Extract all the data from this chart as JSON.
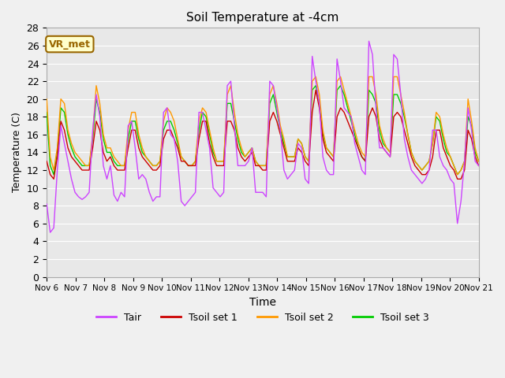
{
  "title": "Soil Temperature at -4cm",
  "xlabel": "Time",
  "ylabel": "Temperature (C)",
  "ylim": [
    0,
    28
  ],
  "annotation_text": "VR_met",
  "annotation_bg": "#ffffcc",
  "annotation_border": "#996600",
  "legend_entries": [
    "Tair",
    "Tsoil set 1",
    "Tsoil set 2",
    "Tsoil set 3"
  ],
  "line_colors": [
    "#cc44ff",
    "#cc0000",
    "#ff9900",
    "#00cc00"
  ],
  "tick_labels": [
    "Nov 6",
    "Nov 7",
    "Nov 8",
    "Nov 9",
    "Nov 10",
    "Nov 11",
    "Nov 12",
    "Nov 13",
    "Nov 14",
    "Nov 15",
    "Nov 16",
    "Nov 17",
    "Nov 18",
    "Nov 19",
    "Nov 20",
    "Nov 21"
  ],
  "tair": [
    8.2,
    5.0,
    5.5,
    12.0,
    17.0,
    15.0,
    13.0,
    11.0,
    9.5,
    9.0,
    8.7,
    9.0,
    9.5,
    16.5,
    20.5,
    18.0,
    12.5,
    11.0,
    12.5,
    9.2,
    8.5,
    9.5,
    9.0,
    17.0,
    17.5,
    14.5,
    11.0,
    11.5,
    11.0,
    9.5,
    8.5,
    9.0,
    9.0,
    18.5,
    19.0,
    16.0,
    15.5,
    13.0,
    8.5,
    8.0,
    8.5,
    9.0,
    9.5,
    18.5,
    18.5,
    16.5,
    14.5,
    10.0,
    9.5,
    9.0,
    9.5,
    21.5,
    22.0,
    17.0,
    12.5,
    12.5,
    12.5,
    13.0,
    14.5,
    9.5,
    9.5,
    9.5,
    9.0,
    22.0,
    21.5,
    19.0,
    16.5,
    12.0,
    11.0,
    11.5,
    12.0,
    15.0,
    14.5,
    11.0,
    10.5,
    24.8,
    22.0,
    19.5,
    13.5,
    12.0,
    11.5,
    11.5,
    24.5,
    22.0,
    19.0,
    18.5,
    18.0,
    15.0,
    13.5,
    12.0,
    11.5,
    26.5,
    25.0,
    19.0,
    14.5,
    14.5,
    14.0,
    13.5,
    25.0,
    24.5,
    20.5,
    15.5,
    13.5,
    12.0,
    11.5,
    11.0,
    10.5,
    11.0,
    12.0,
    16.5,
    16.5,
    13.5,
    12.5,
    12.0,
    11.0,
    10.5,
    6.0,
    8.5,
    13.0,
    19.0,
    16.5,
    13.0,
    12.5
  ],
  "tsoil1": [
    13.0,
    11.5,
    11.0,
    13.5,
    17.5,
    16.5,
    14.5,
    13.5,
    13.0,
    12.5,
    12.0,
    12.0,
    12.0,
    14.5,
    17.5,
    16.5,
    14.0,
    13.0,
    13.5,
    12.5,
    12.0,
    12.0,
    12.0,
    14.5,
    16.5,
    16.5,
    14.5,
    13.5,
    13.0,
    12.5,
    12.0,
    12.0,
    12.5,
    15.5,
    16.5,
    16.5,
    15.5,
    14.5,
    13.0,
    13.0,
    12.5,
    12.5,
    12.5,
    15.5,
    17.5,
    17.5,
    15.0,
    13.5,
    12.5,
    12.5,
    12.5,
    17.5,
    17.5,
    16.5,
    14.5,
    13.5,
    13.0,
    13.5,
    14.0,
    12.5,
    12.5,
    12.0,
    12.0,
    17.5,
    18.5,
    17.5,
    16.0,
    14.5,
    13.0,
    13.0,
    13.0,
    14.5,
    14.0,
    13.0,
    12.5,
    18.5,
    21.0,
    19.0,
    15.5,
    14.0,
    13.5,
    13.0,
    18.0,
    19.0,
    18.5,
    17.5,
    16.5,
    15.5,
    14.5,
    13.5,
    13.0,
    18.0,
    19.0,
    18.0,
    15.5,
    14.5,
    14.0,
    13.5,
    18.0,
    18.5,
    18.0,
    16.5,
    15.0,
    13.5,
    12.5,
    12.0,
    11.5,
    11.5,
    12.0,
    13.5,
    16.5,
    16.5,
    14.5,
    13.5,
    12.5,
    12.0,
    11.0,
    11.0,
    12.0,
    16.5,
    15.5,
    13.5,
    12.5
  ],
  "tsoil2": [
    20.0,
    13.5,
    12.0,
    14.5,
    20.0,
    19.5,
    16.5,
    15.0,
    14.0,
    13.5,
    13.0,
    12.5,
    12.5,
    16.0,
    21.5,
    19.5,
    16.0,
    14.5,
    14.5,
    13.5,
    13.0,
    12.5,
    12.5,
    16.5,
    18.5,
    18.5,
    16.0,
    14.5,
    13.5,
    13.0,
    12.5,
    12.5,
    13.0,
    17.5,
    19.0,
    18.5,
    17.5,
    15.5,
    13.5,
    13.0,
    12.5,
    12.5,
    13.0,
    17.5,
    19.0,
    18.5,
    16.5,
    14.5,
    13.0,
    13.0,
    13.0,
    20.5,
    21.5,
    18.5,
    16.0,
    14.5,
    13.5,
    14.0,
    14.5,
    13.0,
    12.5,
    12.5,
    12.5,
    20.5,
    21.5,
    19.5,
    17.0,
    15.5,
    13.5,
    13.5,
    13.5,
    15.5,
    15.0,
    13.5,
    13.0,
    22.0,
    22.5,
    20.5,
    16.5,
    14.5,
    14.0,
    13.5,
    22.0,
    22.5,
    21.0,
    19.5,
    18.0,
    16.5,
    15.0,
    14.0,
    13.5,
    22.5,
    22.5,
    20.5,
    17.0,
    15.5,
    14.5,
    14.0,
    22.5,
    22.5,
    20.5,
    18.5,
    16.0,
    14.0,
    13.0,
    12.5,
    12.0,
    12.5,
    13.0,
    15.0,
    18.5,
    18.0,
    16.0,
    14.5,
    13.5,
    12.5,
    11.5,
    12.0,
    13.0,
    20.0,
    17.5,
    14.5,
    13.0
  ],
  "tsoil3": [
    18.5,
    12.5,
    11.5,
    14.0,
    19.0,
    18.5,
    16.0,
    14.5,
    13.5,
    13.0,
    12.5,
    12.5,
    12.5,
    15.5,
    20.0,
    18.5,
    15.5,
    14.0,
    14.0,
    13.0,
    12.5,
    12.5,
    12.5,
    15.5,
    17.5,
    17.5,
    15.5,
    14.0,
    13.5,
    13.0,
    12.5,
    12.5,
    13.0,
    16.5,
    17.5,
    17.5,
    16.5,
    15.0,
    13.5,
    13.0,
    12.5,
    12.5,
    13.0,
    16.5,
    18.5,
    18.0,
    16.0,
    14.0,
    13.0,
    13.0,
    13.0,
    19.5,
    19.5,
    17.5,
    15.5,
    14.0,
    13.5,
    14.0,
    14.5,
    13.0,
    12.5,
    12.5,
    12.5,
    19.5,
    20.5,
    18.5,
    16.5,
    15.0,
    13.5,
    13.5,
    13.5,
    15.5,
    15.0,
    13.5,
    13.0,
    21.0,
    21.5,
    19.5,
    16.0,
    14.5,
    14.0,
    13.5,
    21.0,
    21.5,
    20.5,
    19.0,
    17.5,
    16.0,
    14.5,
    13.5,
    13.0,
    21.0,
    20.5,
    19.5,
    16.5,
    15.0,
    14.5,
    14.0,
    20.5,
    20.5,
    19.5,
    18.0,
    16.0,
    14.0,
    13.0,
    12.5,
    12.0,
    12.5,
    13.0,
    15.0,
    18.0,
    17.5,
    15.5,
    14.0,
    13.5,
    12.5,
    11.5,
    12.0,
    13.0,
    18.0,
    17.0,
    14.0,
    13.0
  ]
}
